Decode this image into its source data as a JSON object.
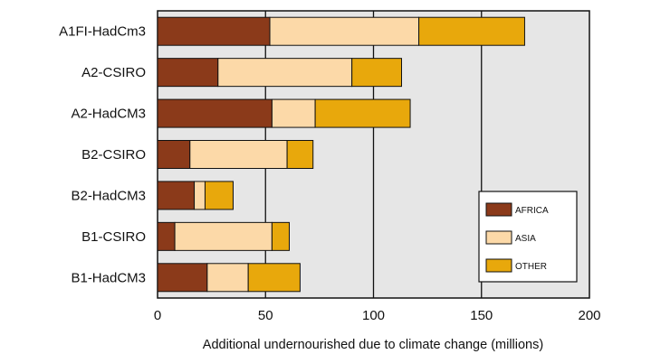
{
  "chart_data": {
    "type": "bar",
    "orientation": "horizontal",
    "stacked": true,
    "categories": [
      "A1FI-HadCm3",
      "A2-CSIRO",
      "A2-HadCM3",
      "B2-CSIRO",
      "B2-HadCM3",
      "B1-CSIRO",
      "B1-HadCM3"
    ],
    "series": [
      {
        "name": "AFRICA",
        "color": "#8b3a1a",
        "values": [
          52,
          28,
          53,
          15,
          17,
          8,
          23
        ]
      },
      {
        "name": "ASIA",
        "color": "#fcd9a8",
        "values": [
          69,
          62,
          20,
          45,
          5,
          45,
          19
        ]
      },
      {
        "name": "OTHER",
        "color": "#e8a80c",
        "values": [
          49,
          23,
          44,
          12,
          13,
          8,
          24
        ]
      }
    ],
    "xlabel": "Additional undernourished due to climate change (millions)",
    "ylabel": "",
    "title": "",
    "xlim": [
      0,
      200
    ],
    "xticks": [
      "0",
      "50",
      "100",
      "150",
      "200"
    ],
    "grid": true,
    "legend_position": "bottom-right",
    "plot_background": "#e6e6e6"
  }
}
